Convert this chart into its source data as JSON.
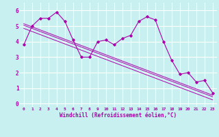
{
  "title": "",
  "xlabel": "Windchill (Refroidissement éolien,°C)",
  "ylabel": "",
  "bg_color": "#c8f0f0",
  "grid_color": "#ffffff",
  "line_color": "#aa00aa",
  "xlim": [
    -0.5,
    23.5
  ],
  "ylim": [
    -0.2,
    6.5
  ],
  "xticks": [
    0,
    1,
    2,
    3,
    4,
    5,
    6,
    7,
    8,
    9,
    10,
    11,
    12,
    13,
    14,
    15,
    16,
    17,
    18,
    19,
    20,
    21,
    22,
    23
  ],
  "yticks": [
    0,
    1,
    2,
    3,
    4,
    5,
    6
  ],
  "data_x": [
    0,
    1,
    2,
    3,
    4,
    5,
    6,
    7,
    8,
    9,
    10,
    11,
    12,
    13,
    14,
    15,
    16,
    17,
    18,
    19,
    20,
    21,
    22,
    23
  ],
  "data_y": [
    3.8,
    5.0,
    5.5,
    5.5,
    5.9,
    5.3,
    4.1,
    3.0,
    3.0,
    4.0,
    4.1,
    3.8,
    4.2,
    4.4,
    5.3,
    5.6,
    5.4,
    4.0,
    2.8,
    1.9,
    2.0,
    1.4,
    1.5,
    0.7
  ],
  "trend_lines": [
    {
      "x0": 0,
      "y0": 5.05,
      "x1": 23,
      "y1": 0.45
    },
    {
      "x0": 0,
      "y0": 5.15,
      "x1": 23,
      "y1": 0.55
    },
    {
      "x0": 0,
      "y0": 4.85,
      "x1": 23,
      "y1": 0.25
    }
  ]
}
